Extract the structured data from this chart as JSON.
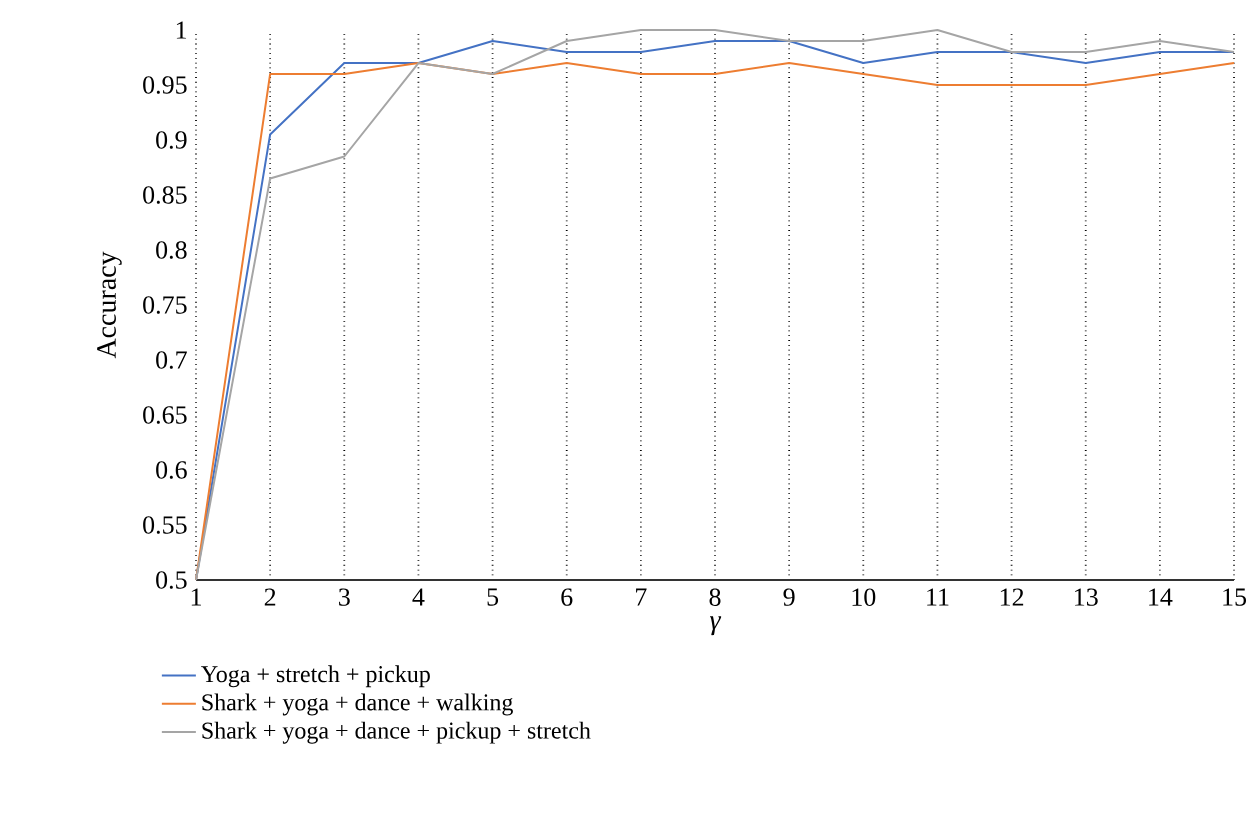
{
  "chart_data": {
    "type": "line",
    "xlabel": "γ",
    "ylabel": "Accuracy",
    "x": [
      1,
      2,
      3,
      4,
      5,
      6,
      7,
      8,
      9,
      10,
      11,
      12,
      13,
      14,
      15
    ],
    "series": [
      {
        "name": "Yoga + stretch + pickup",
        "color": "#4472c4",
        "values": [
          0.5,
          0.905,
          0.97,
          0.97,
          0.99,
          0.98,
          0.98,
          0.99,
          0.99,
          0.97,
          0.98,
          0.98,
          0.97,
          0.98,
          0.98
        ]
      },
      {
        "name": "Shark + yoga + dance + walking",
        "color": "#ed7d31",
        "values": [
          0.5,
          0.96,
          0.96,
          0.97,
          0.96,
          0.97,
          0.96,
          0.96,
          0.97,
          0.96,
          0.95,
          0.95,
          0.95,
          0.96,
          0.97
        ]
      },
      {
        "name": "Shark + yoga + dance + pickup + stretch",
        "color": "#a5a5a5",
        "values": [
          0.5,
          0.865,
          0.885,
          0.97,
          0.96,
          0.99,
          1.0,
          1.0,
          0.99,
          0.99,
          1.0,
          0.98,
          0.98,
          0.99,
          0.98
        ]
      }
    ],
    "xlim": [
      1,
      15
    ],
    "xticks": [
      1,
      2,
      3,
      4,
      5,
      6,
      7,
      8,
      9,
      10,
      11,
      12,
      13,
      14,
      15
    ],
    "ylim": [
      0.5,
      1
    ],
    "yticks": [
      0.5,
      0.55,
      0.6,
      0.65,
      0.7,
      0.75,
      0.8,
      0.85,
      0.9,
      0.95,
      1
    ],
    "grid": "x",
    "legend": "bottom",
    "marker": "none",
    "line_style": "solid"
  }
}
